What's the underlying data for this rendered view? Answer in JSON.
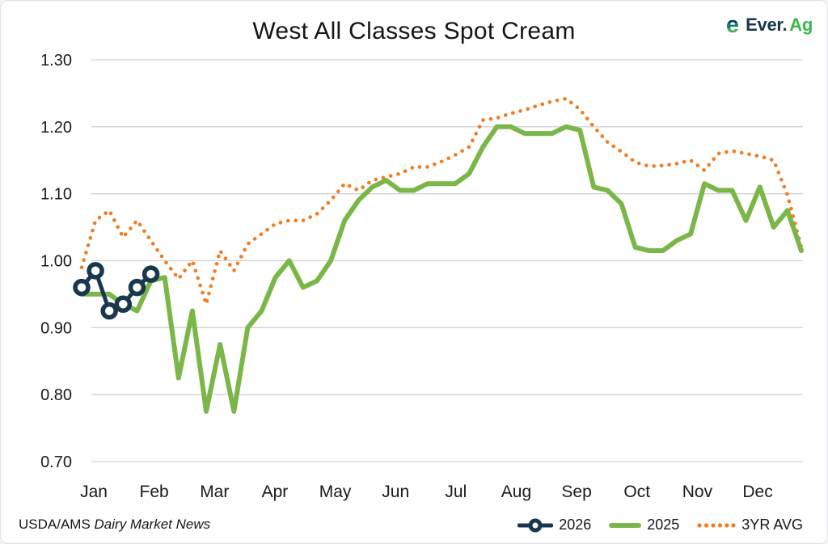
{
  "header": {
    "title": "West All Classes Spot Cream"
  },
  "brand": {
    "name_prefix": "Ever.",
    "name_suffix": "Ag"
  },
  "footer": {
    "source_prefix": "USDA/AMS ",
    "source_italic": "Dairy Market News"
  },
  "colors": {
    "navy": "#17384F",
    "green": "#7AB648",
    "orange": "#F07D22",
    "grid": "#D3D3D3",
    "text": "#1A1A1A",
    "logo_navy": "#17384F",
    "logo_teal": "#0E7F79",
    "logo_green": "#3FB549"
  },
  "chart_data": {
    "type": "line",
    "title": "West All Classes Spot Cream",
    "xlabel": "",
    "ylabel": "",
    "x_categories_months": [
      "Jan",
      "Feb",
      "Mar",
      "Apr",
      "May",
      "Jun",
      "Jul",
      "Aug",
      "Sep",
      "Oct",
      "Nov",
      "Dec"
    ],
    "y_axis": {
      "min": 0.7,
      "max": 1.3,
      "step": 0.1,
      "tick_labels": [
        "1.30",
        "1.20",
        "1.10",
        "1.00",
        "0.90",
        "0.80",
        "0.70"
      ],
      "grid": true
    },
    "x_resolution": "weekly (53 points per year)",
    "legend_position": "bottom-right",
    "series": [
      {
        "name": "2026",
        "color": "#17384F",
        "style": "solid-with-ring-markers",
        "values": [
          0.96,
          0.985,
          0.925,
          0.935,
          0.96,
          0.98
        ]
      },
      {
        "name": "2025",
        "color": "#7AB648",
        "style": "solid",
        "values": [
          0.95,
          0.95,
          0.95,
          0.935,
          0.925,
          0.97,
          0.975,
          0.825,
          0.925,
          0.775,
          0.875,
          0.775,
          0.9,
          0.925,
          0.975,
          1.0,
          0.96,
          0.97,
          1.0,
          1.06,
          1.09,
          1.11,
          1.12,
          1.105,
          1.105,
          1.115,
          1.115,
          1.115,
          1.13,
          1.17,
          1.2,
          1.2,
          1.19,
          1.19,
          1.19,
          1.2,
          1.195,
          1.11,
          1.105,
          1.085,
          1.02,
          1.015,
          1.015,
          1.03,
          1.04,
          1.115,
          1.105,
          1.105,
          1.06,
          1.11,
          1.05,
          1.075,
          1.015
        ]
      },
      {
        "name": "3YR AVG",
        "color": "#F07D22",
        "style": "dotted",
        "values": [
          0.99,
          1.06,
          1.075,
          1.035,
          1.06,
          1.03,
          1.0,
          0.973,
          1.0,
          0.935,
          1.015,
          0.985,
          1.025,
          1.04,
          1.055,
          1.06,
          1.06,
          1.07,
          1.09,
          1.115,
          1.105,
          1.12,
          1.125,
          1.13,
          1.14,
          1.14,
          1.148,
          1.158,
          1.17,
          1.21,
          1.213,
          1.22,
          1.225,
          1.232,
          1.238,
          1.242,
          1.226,
          1.2,
          1.177,
          1.163,
          1.147,
          1.141,
          1.142,
          1.145,
          1.15,
          1.135,
          1.16,
          1.164,
          1.16,
          1.156,
          1.15,
          1.098,
          1.02
        ]
      }
    ]
  }
}
